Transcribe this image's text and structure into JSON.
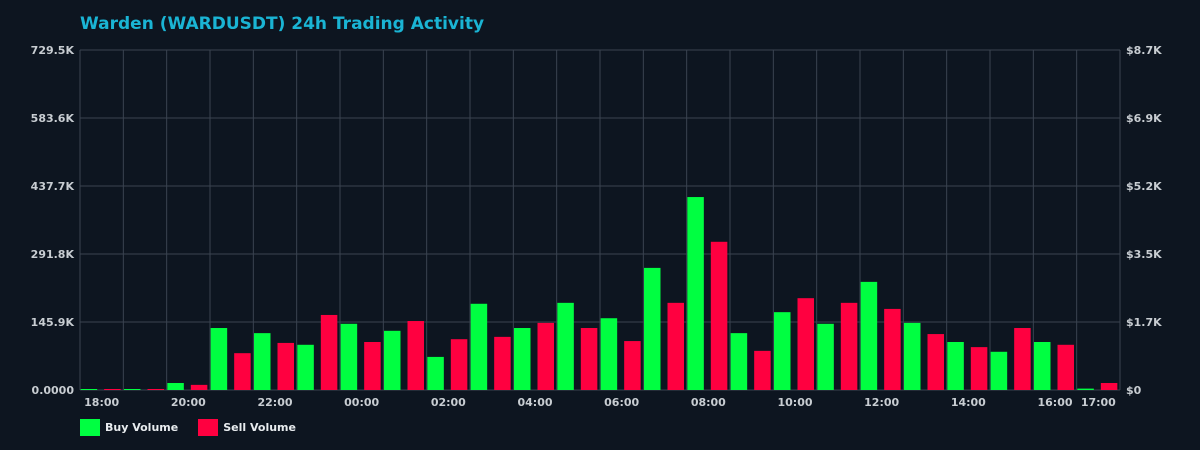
{
  "colors": {
    "background": "#0d1520",
    "title": "#1ab4d4",
    "grid": "#3a4350",
    "buy": "#00ff41",
    "sell": "#ff0040",
    "tick_text": "#c8cdd2"
  },
  "chart_data": {
    "type": "bar",
    "title": "Warden (WARDUSDT) 24h Trading Activity",
    "xlabel": "",
    "ylabel": "",
    "categories": [
      "18:00",
      "19:00",
      "20:00",
      "21:00",
      "22:00",
      "23:00",
      "00:00",
      "01:00",
      "02:00",
      "03:00",
      "04:00",
      "05:00",
      "06:00",
      "07:00",
      "08:00",
      "09:00",
      "10:00",
      "11:00",
      "12:00",
      "13:00",
      "14:00",
      "15:00",
      "16:00",
      "17:00"
    ],
    "x_tick_labels": [
      {
        "index": 0,
        "label": "18:00"
      },
      {
        "index": 2,
        "label": "20:00"
      },
      {
        "index": 4,
        "label": "22:00"
      },
      {
        "index": 6,
        "label": "00:00"
      },
      {
        "index": 8,
        "label": "02:00"
      },
      {
        "index": 10,
        "label": "04:00"
      },
      {
        "index": 12,
        "label": "06:00"
      },
      {
        "index": 14,
        "label": "08:00"
      },
      {
        "index": 16,
        "label": "10:00"
      },
      {
        "index": 18,
        "label": "12:00"
      },
      {
        "index": 20,
        "label": "14:00"
      },
      {
        "index": 22,
        "label": "16:00"
      },
      {
        "index": 23,
        "label": "17:00"
      }
    ],
    "series": [
      {
        "name": "Buy Volume",
        "color": "#00ff41",
        "values": [
          1500,
          1200,
          15000,
          133000,
          122000,
          97000,
          142000,
          127000,
          71000,
          185000,
          133000,
          187000,
          154000,
          262000,
          414000,
          122000,
          167000,
          142000,
          232000,
          144000,
          103000,
          82000,
          103000,
          3000
        ]
      },
      {
        "name": "Sell Volume",
        "color": "#ff0040",
        "values": [
          1000,
          1000,
          11000,
          79000,
          101000,
          161000,
          103000,
          148000,
          109000,
          114000,
          144000,
          133000,
          105000,
          187000,
          318000,
          84000,
          197000,
          187000,
          174000,
          120000,
          92000,
          133000,
          97000,
          15000
        ]
      }
    ],
    "ylim": [
      0,
      729500
    ],
    "y_ticks_left": [
      "0.0000",
      "145.9K",
      "291.8K",
      "437.7K",
      "583.6K",
      "729.5K"
    ],
    "y_ticks_right": [
      "$0",
      "$1.7K",
      "$3.5K",
      "$5.2K",
      "$6.9K",
      "$8.7K"
    ],
    "y2lim": [
      0,
      8700
    ],
    "grid": true,
    "legend_position": "bottom-left"
  },
  "legend": {
    "buy_label": "Buy Volume",
    "sell_label": "Sell Volume"
  }
}
